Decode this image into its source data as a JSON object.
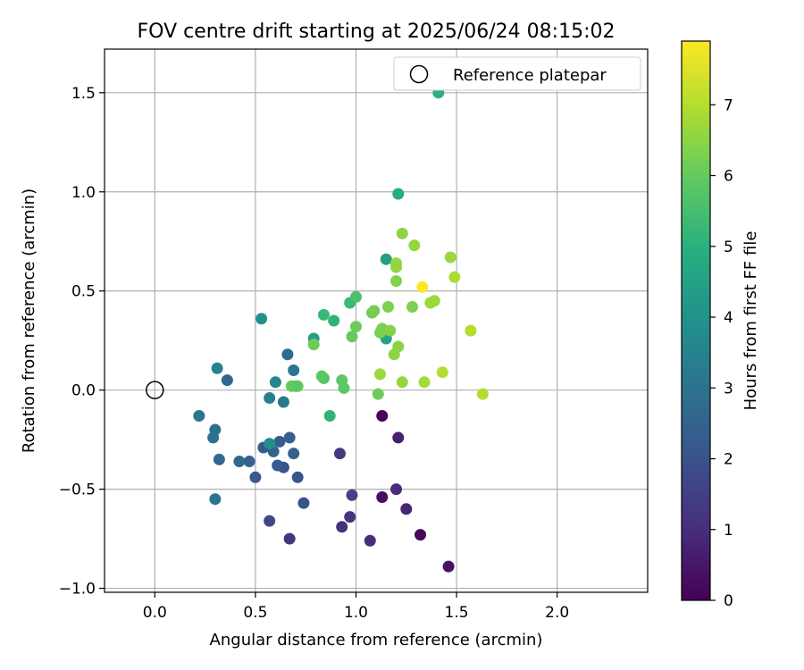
{
  "chart_data": {
    "type": "scatter",
    "title": "FOV centre drift starting at 2025/06/24 08:15:02",
    "xlabel": "Angular distance from reference (arcmin)",
    "ylabel": "Rotation from reference (arcmin)",
    "xlim": [
      -0.25,
      2.45
    ],
    "ylim": [
      -1.02,
      1.72
    ],
    "x_ticks": [
      0.0,
      0.5,
      1.0,
      1.5,
      2.0
    ],
    "x_tick_labels": [
      "0.0",
      "0.5",
      "1.0",
      "1.5",
      "2.0"
    ],
    "y_ticks": [
      -1.0,
      -0.5,
      0.0,
      0.5,
      1.0,
      1.5
    ],
    "y_tick_labels": [
      "−1.0",
      "−0.5",
      "0.0",
      "0.5",
      "1.0",
      "1.5"
    ],
    "grid": true,
    "legend": {
      "position": "top-right",
      "entries": [
        "Reference platepar"
      ]
    },
    "reference_point": {
      "x": 0.0,
      "y": 0.0,
      "label": "Reference platepar"
    },
    "colorbar": {
      "label": "Hours from first FF file",
      "range": [
        0,
        7.9
      ],
      "ticks": [
        0,
        1,
        2,
        3,
        4,
        5,
        6,
        7
      ],
      "tick_labels": [
        "0",
        "1",
        "2",
        "3",
        "4",
        "5",
        "6",
        "7"
      ],
      "colormap": "viridis"
    },
    "series": [
      {
        "points": [
          {
            "x": 1.13,
            "y": -0.13,
            "h": 0.1
          },
          {
            "x": 1.13,
            "y": -0.54,
            "h": 0.3
          },
          {
            "x": 1.32,
            "y": -0.73,
            "h": 0.2
          },
          {
            "x": 1.46,
            "y": -0.89,
            "h": 0.4
          },
          {
            "x": 1.21,
            "y": -0.24,
            "h": 0.7
          },
          {
            "x": 1.25,
            "y": -0.6,
            "h": 0.8
          },
          {
            "x": 1.2,
            "y": -0.5,
            "h": 1.0
          },
          {
            "x": 1.07,
            "y": -0.76,
            "h": 1.0
          },
          {
            "x": 0.93,
            "y": -0.69,
            "h": 1.1
          },
          {
            "x": 0.97,
            "y": -0.64,
            "h": 1.2
          },
          {
            "x": 0.92,
            "y": -0.32,
            "h": 1.3
          },
          {
            "x": 0.98,
            "y": -0.53,
            "h": 1.6
          },
          {
            "x": 0.67,
            "y": -0.75,
            "h": 1.2
          },
          {
            "x": 0.57,
            "y": -0.66,
            "h": 1.7
          },
          {
            "x": 0.74,
            "y": -0.57,
            "h": 2.0
          },
          {
            "x": 0.71,
            "y": -0.44,
            "h": 2.1
          },
          {
            "x": 0.64,
            "y": -0.39,
            "h": 2.1
          },
          {
            "x": 0.61,
            "y": -0.38,
            "h": 2.2
          },
          {
            "x": 0.5,
            "y": -0.44,
            "h": 2.2
          },
          {
            "x": 0.54,
            "y": -0.29,
            "h": 2.2
          },
          {
            "x": 0.62,
            "y": -0.26,
            "h": 2.4
          },
          {
            "x": 0.67,
            "y": -0.24,
            "h": 2.4
          },
          {
            "x": 0.69,
            "y": -0.32,
            "h": 2.4
          },
          {
            "x": 0.59,
            "y": -0.31,
            "h": 2.5
          },
          {
            "x": 0.47,
            "y": -0.36,
            "h": 2.5
          },
          {
            "x": 0.42,
            "y": -0.36,
            "h": 2.7
          },
          {
            "x": 0.32,
            "y": -0.35,
            "h": 2.7
          },
          {
            "x": 0.3,
            "y": -0.2,
            "h": 2.9
          },
          {
            "x": 0.29,
            "y": -0.24,
            "h": 2.9
          },
          {
            "x": 0.22,
            "y": -0.13,
            "h": 3.0
          },
          {
            "x": 0.3,
            "y": -0.55,
            "h": 3.0
          },
          {
            "x": 0.36,
            "y": 0.05,
            "h": 2.7
          },
          {
            "x": 0.66,
            "y": 0.18,
            "h": 2.8
          },
          {
            "x": 0.69,
            "y": 0.1,
            "h": 3.1
          },
          {
            "x": 0.64,
            "y": -0.06,
            "h": 3.2
          },
          {
            "x": 0.57,
            "y": -0.04,
            "h": 3.4
          },
          {
            "x": 0.31,
            "y": 0.11,
            "h": 3.5
          },
          {
            "x": 0.6,
            "y": 0.04,
            "h": 3.6
          },
          {
            "x": 0.57,
            "y": -0.27,
            "h": 3.9
          },
          {
            "x": 0.53,
            "y": 0.36,
            "h": 4.0
          },
          {
            "x": 0.79,
            "y": 0.26,
            "h": 4.4
          },
          {
            "x": 1.15,
            "y": 0.26,
            "h": 4.5
          },
          {
            "x": 1.15,
            "y": 0.66,
            "h": 4.4
          },
          {
            "x": 1.21,
            "y": 0.99,
            "h": 4.9
          },
          {
            "x": 1.41,
            "y": 1.5,
            "h": 5.0
          },
          {
            "x": 0.89,
            "y": 0.35,
            "h": 5.1
          },
          {
            "x": 0.87,
            "y": -0.13,
            "h": 5.1
          },
          {
            "x": 0.84,
            "y": 0.38,
            "h": 5.3
          },
          {
            "x": 0.97,
            "y": 0.44,
            "h": 5.3
          },
          {
            "x": 1.0,
            "y": 0.47,
            "h": 5.6
          },
          {
            "x": 0.84,
            "y": 0.06,
            "h": 5.7
          },
          {
            "x": 0.83,
            "y": 0.07,
            "h": 5.9
          },
          {
            "x": 0.93,
            "y": 0.05,
            "h": 5.9
          },
          {
            "x": 0.94,
            "y": 0.01,
            "h": 5.9
          },
          {
            "x": 0.71,
            "y": 0.02,
            "h": 6.0
          },
          {
            "x": 0.68,
            "y": 0.02,
            "h": 6.0
          },
          {
            "x": 0.7,
            "y": 0.02,
            "h": 5.9
          },
          {
            "x": 0.79,
            "y": 0.23,
            "h": 6.1
          },
          {
            "x": 0.98,
            "y": 0.27,
            "h": 6.0
          },
          {
            "x": 1.0,
            "y": 0.32,
            "h": 6.1
          },
          {
            "x": 1.08,
            "y": 0.39,
            "h": 6.2
          },
          {
            "x": 1.09,
            "y": 0.4,
            "h": 6.2
          },
          {
            "x": 1.13,
            "y": 0.31,
            "h": 6.3
          },
          {
            "x": 1.16,
            "y": 0.42,
            "h": 6.3
          },
          {
            "x": 1.12,
            "y": 0.29,
            "h": 6.3
          },
          {
            "x": 1.17,
            "y": 0.3,
            "h": 6.4
          },
          {
            "x": 1.19,
            "y": 0.18,
            "h": 6.5
          },
          {
            "x": 1.21,
            "y": 0.22,
            "h": 6.5
          },
          {
            "x": 1.11,
            "y": -0.02,
            "h": 6.1
          },
          {
            "x": 1.12,
            "y": 0.08,
            "h": 6.7
          },
          {
            "x": 1.23,
            "y": 0.04,
            "h": 6.6
          },
          {
            "x": 1.2,
            "y": 0.55,
            "h": 6.4
          },
          {
            "x": 1.2,
            "y": 0.62,
            "h": 6.6
          },
          {
            "x": 1.2,
            "y": 0.64,
            "h": 6.6
          },
          {
            "x": 1.23,
            "y": 0.79,
            "h": 6.5
          },
          {
            "x": 1.28,
            "y": 0.42,
            "h": 6.3
          },
          {
            "x": 1.29,
            "y": 0.73,
            "h": 6.6
          },
          {
            "x": 1.34,
            "y": 0.04,
            "h": 6.8
          },
          {
            "x": 1.37,
            "y": 0.44,
            "h": 6.7
          },
          {
            "x": 1.39,
            "y": 0.45,
            "h": 6.7
          },
          {
            "x": 1.43,
            "y": 0.09,
            "h": 7.0
          },
          {
            "x": 1.47,
            "y": 0.67,
            "h": 6.7
          },
          {
            "x": 1.49,
            "y": 0.57,
            "h": 6.9
          },
          {
            "x": 1.57,
            "y": 0.3,
            "h": 7.0
          },
          {
            "x": 1.63,
            "y": -0.02,
            "h": 7.0
          },
          {
            "x": 1.33,
            "y": 0.52,
            "h": 7.9
          }
        ]
      }
    ]
  }
}
